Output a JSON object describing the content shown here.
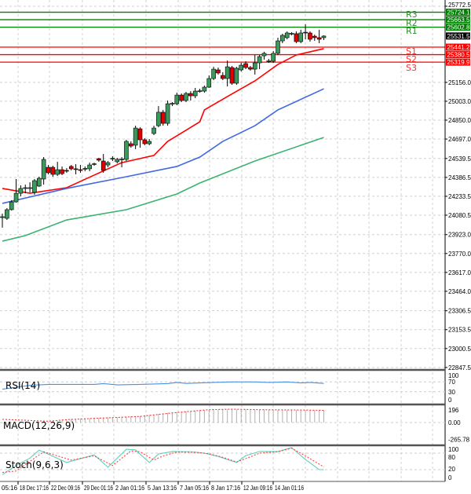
{
  "chart_data": {
    "type": "candlestick",
    "price_axis": {
      "ticks": [
        "25772.5",
        "25156.0",
        "25003.0",
        "24850.0",
        "24697.0",
        "24539.5",
        "24386.5",
        "24233.5",
        "24080.5",
        "23923.0",
        "23770.0",
        "23617.0",
        "23464.0",
        "23306.5",
        "23153.5",
        "23000.5",
        "22847.5"
      ],
      "range": [
        22847.5,
        25772.5
      ]
    },
    "time_axis": {
      "ticks": [
        "05:16",
        "18 Dec 17:16",
        "22 Dec 09:16",
        "29 Dec 01:16",
        "2 Jan 01:16",
        "5 Jan 13:16",
        "7 Jan 05:16",
        "8 Jan 17:16",
        "12 Jan 09:16",
        "14 Jan 01:16"
      ]
    },
    "current_price": {
      "label": "25531.5",
      "value": 25531.5
    },
    "levels": [
      {
        "name": "R3",
        "value": 25724.1,
        "label": "25724.1",
        "color": "#008000"
      },
      {
        "name": "R2",
        "value": 25663.5,
        "label": "25663.5",
        "color": "#008000"
      },
      {
        "name": "R1",
        "value": 25602.8,
        "label": "25602.8",
        "color": "#008000"
      },
      {
        "name": "S1",
        "value": 25441.2,
        "label": "25441.2",
        "color": "#ff0000"
      },
      {
        "name": "S2",
        "value": 25380.5,
        "label": "25380.5",
        "color": "#ff0000"
      },
      {
        "name": "S3",
        "value": 25319.9,
        "label": "25319.9",
        "color": "#ff0000"
      }
    ],
    "colors": {
      "up": "#3a9a5c",
      "down": "#e00000"
    },
    "ohlc": [
      [
        24061,
        24093,
        23979,
        24068
      ],
      [
        24055,
        24138,
        24042,
        24125
      ],
      [
        24125,
        24201,
        24118,
        24188
      ],
      [
        24188,
        24373,
        24182,
        24258
      ],
      [
        24258,
        24322,
        24233,
        24297
      ],
      [
        24297,
        24328,
        24258,
        24303
      ],
      [
        24297,
        24347,
        24265,
        24303
      ],
      [
        24265,
        24373,
        24246,
        24360
      ],
      [
        24316,
        24392,
        24309,
        24379
      ],
      [
        24373,
        24551,
        24328,
        24532
      ],
      [
        24468,
        24487,
        24411,
        24424
      ],
      [
        24468,
        24481,
        24392,
        24411
      ],
      [
        24411,
        24513,
        24398,
        24449
      ],
      [
        24449,
        24475,
        24405,
        24417
      ],
      [
        24443,
        24462,
        24424,
        24440
      ],
      [
        24475,
        24487,
        24443,
        24456
      ],
      [
        24456,
        24494,
        24411,
        24452
      ],
      [
        24449,
        24487,
        24424,
        24446
      ],
      [
        24456,
        24475,
        24436,
        24459
      ],
      [
        24456,
        24506,
        24436,
        24487
      ],
      [
        24494,
        24506,
        24481,
        24497
      ],
      [
        24538,
        24545,
        24513,
        24526
      ],
      [
        24519,
        24576,
        24424,
        24443
      ],
      [
        24487,
        24519,
        24468,
        24506
      ],
      [
        24538,
        24557,
        24519,
        24541
      ],
      [
        24513,
        24545,
        24500,
        24532
      ],
      [
        24532,
        24551,
        24468,
        24535
      ],
      [
        24532,
        24691,
        24519,
        24678
      ],
      [
        24659,
        24678,
        24627,
        24640
      ],
      [
        24647,
        24805,
        24615,
        24786
      ],
      [
        24780,
        24792,
        24627,
        24691
      ],
      [
        24691,
        24704,
        24647,
        24659
      ],
      [
        24659,
        24697,
        24647,
        24678
      ],
      [
        24742,
        24805,
        24729,
        24786
      ],
      [
        24805,
        24964,
        24793,
        24914
      ],
      [
        24914,
        24933,
        24805,
        24824
      ],
      [
        24824,
        25009,
        24805,
        24983
      ],
      [
        24983,
        24996,
        24964,
        24986
      ],
      [
        24983,
        25073,
        24971,
        25053
      ],
      [
        25053,
        25066,
        24996,
        25009
      ],
      [
        25009,
        25079,
        24996,
        25066
      ],
      [
        25066,
        25085,
        25009,
        25047
      ],
      [
        25047,
        25111,
        25028,
        25085
      ],
      [
        25085,
        25104,
        25073,
        25088
      ],
      [
        25085,
        25130,
        25073,
        25117
      ],
      [
        25117,
        25212,
        25111,
        25187
      ],
      [
        25187,
        25282,
        25174,
        25263
      ],
      [
        25257,
        25276,
        25219,
        25232
      ],
      [
        25212,
        25238,
        25174,
        25187
      ],
      [
        25187,
        25333,
        25123,
        25282
      ],
      [
        25276,
        25289,
        25136,
        25149
      ],
      [
        25149,
        25282,
        25136,
        25270
      ],
      [
        25257,
        25314,
        25244,
        25295
      ],
      [
        25308,
        25327,
        25263,
        25276
      ],
      [
        25276,
        25289,
        25251,
        25263
      ],
      [
        25263,
        25378,
        25219,
        25314
      ],
      [
        25314,
        25378,
        25263,
        25365
      ],
      [
        25371,
        25404,
        25340,
        25391
      ],
      [
        25327,
        25346,
        25314,
        25330
      ],
      [
        25327,
        25410,
        25314,
        25391
      ],
      [
        25391,
        25518,
        25378,
        25492
      ],
      [
        25492,
        25550,
        25473,
        25537
      ],
      [
        25518,
        25569,
        25505,
        25556
      ],
      [
        25550,
        25562,
        25537,
        25553
      ],
      [
        25550,
        25569,
        25473,
        25486
      ],
      [
        25486,
        25582,
        25473,
        25556
      ],
      [
        25562,
        25626,
        25505,
        25559
      ],
      [
        25556,
        25569,
        25486,
        25505
      ],
      [
        25530,
        25543,
        25492,
        25518
      ],
      [
        25518,
        25582,
        25473,
        25505
      ],
      [
        25518,
        25537,
        25499,
        25531
      ]
    ],
    "moving_averages": [
      {
        "color": "#ff0000",
        "points": [
          [
            0,
            24297
          ],
          [
            6,
            24258
          ],
          [
            14,
            24303
          ],
          [
            20,
            24405
          ],
          [
            26,
            24506
          ],
          [
            33,
            24564
          ],
          [
            36,
            24678
          ],
          [
            38,
            24723
          ],
          [
            43,
            24837
          ],
          [
            44,
            24933
          ],
          [
            49,
            25041
          ],
          [
            55,
            25168
          ],
          [
            60,
            25301
          ],
          [
            64,
            25378
          ],
          [
            70,
            25429
          ]
        ]
      },
      {
        "color": "#4169e1",
        "points": [
          [
            0,
            24176
          ],
          [
            14,
            24297
          ],
          [
            27,
            24392
          ],
          [
            38,
            24475
          ],
          [
            43,
            24551
          ],
          [
            48,
            24678
          ],
          [
            55,
            24805
          ],
          [
            60,
            24933
          ],
          [
            70,
            25104
          ]
        ]
      },
      {
        "color": "#3cb371",
        "points": [
          [
            0,
            23870
          ],
          [
            5,
            23915
          ],
          [
            14,
            24042
          ],
          [
            27,
            24125
          ],
          [
            38,
            24252
          ],
          [
            43,
            24341
          ],
          [
            55,
            24519
          ],
          [
            70,
            24710
          ]
        ]
      }
    ],
    "indicators": {
      "rsi": {
        "label": "RSI(14)",
        "ticks": [
          "100",
          "70",
          "30",
          "0"
        ],
        "color": "#4a90e2",
        "points": [
          [
            0,
            40
          ],
          [
            6,
            56
          ],
          [
            10,
            60
          ],
          [
            20,
            60
          ],
          [
            22,
            63
          ],
          [
            25,
            58
          ],
          [
            30,
            60
          ],
          [
            36,
            63
          ],
          [
            38,
            68
          ],
          [
            40,
            64
          ],
          [
            46,
            68
          ],
          [
            50,
            70
          ],
          [
            55,
            70
          ],
          [
            58,
            68
          ],
          [
            62,
            70
          ],
          [
            65,
            66
          ],
          [
            67,
            68
          ],
          [
            70,
            64
          ]
        ]
      },
      "macd": {
        "label": "MACD(12,26,9)",
        "ticks": [
          "196",
          "0.00",
          "-265.78"
        ],
        "range": [
          -265.78,
          260
        ],
        "histogram": [
          [
            0,
            -10
          ],
          [
            10,
            10
          ],
          [
            14,
            50
          ],
          [
            20,
            70
          ],
          [
            30,
            100
          ],
          [
            37,
            160
          ],
          [
            45,
            200
          ],
          [
            52,
            205
          ],
          [
            58,
            200
          ],
          [
            64,
            195
          ],
          [
            70,
            190
          ]
        ],
        "signal": [
          [
            0,
            50
          ],
          [
            10,
            20
          ],
          [
            14,
            45
          ],
          [
            20,
            65
          ],
          [
            30,
            95
          ],
          [
            37,
            150
          ],
          [
            45,
            200
          ],
          [
            50,
            208
          ],
          [
            56,
            200
          ],
          [
            64,
            196
          ],
          [
            70,
            190
          ]
        ]
      },
      "stoch": {
        "label": "Stoch(9,6,3)",
        "ticks": [
          "100",
          "80",
          "20",
          "0"
        ],
        "k": [
          [
            0,
            2
          ],
          [
            3,
            35
          ],
          [
            6,
            62
          ],
          [
            8,
            91
          ],
          [
            14,
            46
          ],
          [
            20,
            74
          ],
          [
            23,
            29
          ],
          [
            27,
            94
          ],
          [
            29,
            92
          ],
          [
            32,
            46
          ],
          [
            34,
            77
          ],
          [
            37,
            86
          ],
          [
            41,
            85
          ],
          [
            44,
            80
          ],
          [
            47,
            68
          ],
          [
            51,
            46
          ],
          [
            53,
            71
          ],
          [
            56,
            86
          ],
          [
            60,
            86
          ],
          [
            63,
            100
          ],
          [
            66,
            57
          ],
          [
            69,
            20
          ],
          [
            70,
            20
          ]
        ],
        "d": [
          [
            0,
            10
          ],
          [
            3,
            15
          ],
          [
            6,
            50
          ],
          [
            9,
            85
          ],
          [
            15,
            55
          ],
          [
            20,
            70
          ],
          [
            24,
            35
          ],
          [
            28,
            88
          ],
          [
            30,
            85
          ],
          [
            33,
            55
          ],
          [
            35,
            70
          ],
          [
            38,
            84
          ],
          [
            42,
            83
          ],
          [
            45,
            78
          ],
          [
            48,
            65
          ],
          [
            51,
            48
          ],
          [
            53,
            60
          ],
          [
            56,
            80
          ],
          [
            60,
            85
          ],
          [
            63,
            98
          ],
          [
            66,
            70
          ],
          [
            70,
            30
          ]
        ]
      }
    }
  }
}
